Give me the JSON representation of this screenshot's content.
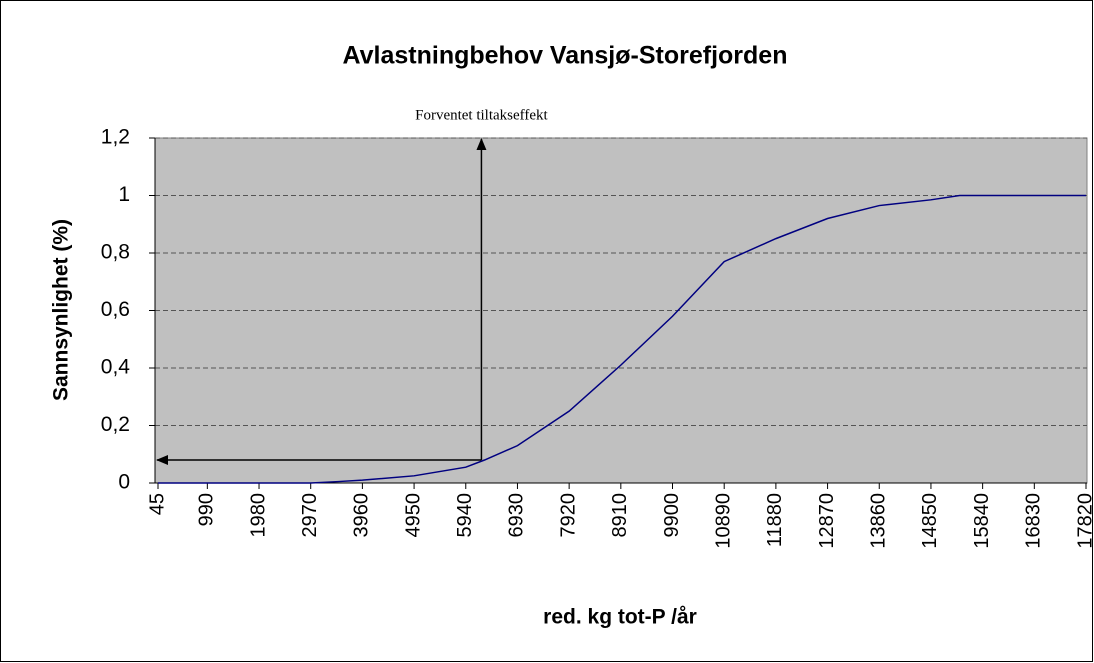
{
  "chart_data": {
    "type": "line",
    "title": "Avlastningbehov Vansjø-Storefjorden",
    "x_label": "red. kg tot-P /år",
    "y_label": "Sannsynlighet (%)",
    "annotation": {
      "text": "Forventet tiltakseffekt",
      "x": 6240,
      "y": 0.08
    },
    "series": [
      {
        "name": "Sannsynlighet",
        "color": "#000080",
        "x": [
          45,
          2970,
          3500,
          3960,
          4950,
          5940,
          6300,
          6930,
          7920,
          8910,
          9900,
          10890,
          11880,
          12870,
          13860,
          14850,
          15400,
          17820
        ],
        "values": [
          0,
          0,
          0.005,
          0.01,
          0.025,
          0.055,
          0.08,
          0.13,
          0.25,
          0.41,
          0.58,
          0.77,
          0.85,
          0.92,
          0.965,
          0.985,
          1,
          1
        ]
      }
    ],
    "xlim": [
      45,
      17820
    ],
    "xticks": [
      45,
      990,
      1980,
      2970,
      3960,
      4950,
      5940,
      6930,
      7920,
      8910,
      9900,
      10890,
      11880,
      12870,
      13860,
      14850,
      15840,
      16830,
      17820
    ],
    "ylim": [
      0,
      1.2
    ],
    "yticks": [
      0,
      {
        "value": 0.2,
        "label": "0,2"
      },
      {
        "value": 0.4,
        "label": "0,4"
      },
      {
        "value": 0.6,
        "label": "0,6"
      },
      {
        "value": 0.8,
        "label": "0,8"
      },
      1,
      {
        "value": 1.2,
        "label": "1,2"
      }
    ],
    "grid": true,
    "plot_background": "#c0c0c0"
  }
}
